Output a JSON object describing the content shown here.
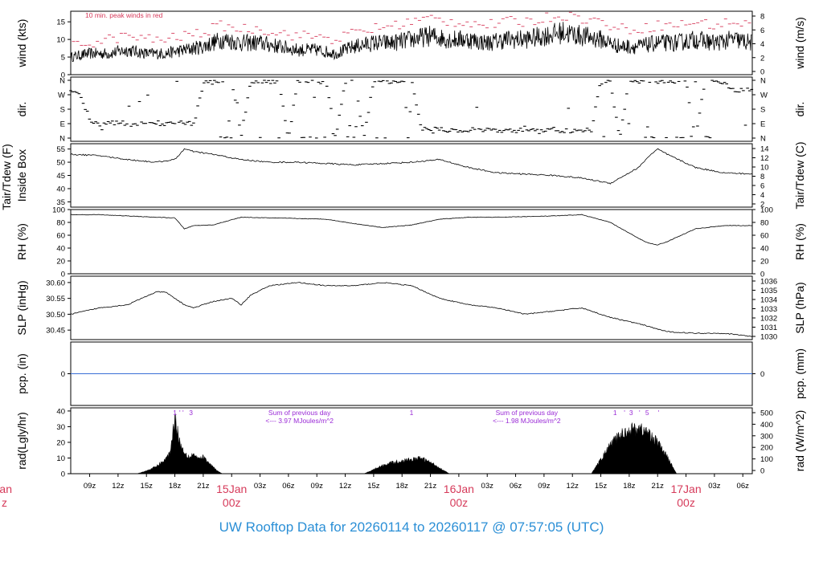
{
  "figure": {
    "footer": "UW Rooftop Data for 20260114  to  20260117 @ 07:57:05  (UTC)"
  },
  "colors": {
    "trace": "#000000",
    "peak": "#d63a5a",
    "date_label": "#d63a5a",
    "annotation": "#9a2bd6",
    "precip": "#3a6fd6",
    "footer": "#2b8fd6"
  },
  "x_axis": {
    "tick_labels": [
      "09z",
      "12z",
      "15z",
      "18z",
      "21z",
      "03z",
      "06z",
      "09z",
      "12z",
      "15z",
      "18z",
      "21z",
      "03z",
      "06z",
      "09z",
      "12z",
      "15z",
      "18z",
      "21z",
      "03z",
      "06z"
    ],
    "day_labels": [
      {
        "date": "15Jan",
        "time": "00z"
      },
      {
        "date": "16Jan",
        "time": "00z"
      },
      {
        "date": "17Jan",
        "time": "00z"
      }
    ],
    "edge_label": {
      "date": "an",
      "time": "z"
    }
  },
  "chart_data": [
    {
      "id": "wind",
      "type": "line",
      "ylabel_left": "wind (kts)",
      "ylabel_right": "wind (m/s)",
      "left_ticks": [
        "0",
        "5",
        "10",
        "15"
      ],
      "right_ticks": [
        "0",
        "2",
        "4",
        "6",
        "8"
      ],
      "ylim": [
        0,
        18
      ],
      "annotation": "10 min. peak winds in red",
      "series": [
        {
          "x": [
            0,
            2,
            4,
            6,
            8,
            10,
            12,
            14,
            16,
            18,
            20,
            22,
            24,
            26,
            28,
            30,
            32,
            34,
            36,
            38,
            40,
            42,
            44,
            46,
            48,
            50,
            52,
            54,
            56,
            58,
            60,
            62,
            64,
            66,
            68,
            70,
            72
          ],
          "values": [
            5,
            6,
            6,
            7,
            6,
            6,
            7,
            8,
            10,
            9,
            9,
            8,
            7,
            7,
            6,
            8,
            9,
            9,
            10,
            11,
            10,
            10,
            9,
            10,
            10,
            11,
            12,
            11,
            10,
            8,
            8,
            9,
            9,
            10,
            9,
            10,
            9
          ]
        },
        {
          "x": [
            0,
            2,
            4,
            6,
            8,
            10,
            12,
            14,
            16,
            18,
            20,
            22,
            24,
            26,
            28,
            30,
            32,
            34,
            36,
            38,
            40,
            42,
            44,
            46,
            48,
            50,
            52,
            54,
            56,
            58,
            60,
            62,
            64,
            66,
            68,
            70,
            72
          ],
          "values": [
            8,
            9,
            10,
            11,
            10,
            10,
            11,
            12,
            14,
            13,
            13,
            12,
            11,
            11,
            10,
            12,
            13,
            14,
            15,
            16,
            15,
            15,
            14,
            15,
            15,
            16,
            17,
            16,
            15,
            13,
            13,
            14,
            14,
            15,
            14,
            15,
            14
          ]
        }
      ]
    },
    {
      "id": "dir",
      "type": "scatter",
      "ylabel_left": "dir.",
      "ylabel_right": "dir.",
      "left_ticks": [
        "N",
        "E",
        "S",
        "W",
        "N"
      ],
      "right_ticks": [
        "N",
        "E",
        "S",
        "W",
        "N"
      ],
      "ylim": [
        0,
        360
      ],
      "series": [
        {
          "x": [
            0,
            1,
            2,
            3,
            4,
            5,
            6,
            7,
            8,
            9,
            10,
            11,
            12,
            13,
            14,
            15,
            16,
            17,
            18,
            19,
            20,
            21,
            22,
            23,
            24,
            25,
            26,
            27,
            28,
            29,
            30,
            31,
            32,
            33,
            34,
            35,
            36,
            37,
            38,
            39,
            40,
            41,
            42,
            43,
            44,
            45,
            46,
            47,
            48,
            49,
            50,
            51,
            52,
            53,
            54,
            55,
            56,
            57,
            58,
            59,
            60,
            61,
            62,
            63,
            64,
            65,
            66,
            67,
            68,
            69,
            70,
            71
          ],
          "values": [
            290,
            270,
            120,
            80,
            90,
            95,
            90,
            85,
            90,
            95,
            90,
            100,
            95,
            90,
            340,
            350,
            355,
            355,
            5,
            355,
            350,
            355,
            355,
            0,
            355,
            355,
            350,
            355,
            5,
            355,
            355,
            0,
            355,
            355,
            355,
            350,
            355,
            60,
            50,
            55,
            50,
            45,
            50,
            50,
            55,
            45,
            40,
            45,
            60,
            55,
            50,
            55,
            45,
            40,
            45,
            50,
            355,
            355,
            0,
            355,
            355,
            355,
            350,
            355,
            355,
            355,
            0,
            355,
            355,
            340,
            300,
            300
          ]
        }
      ]
    },
    {
      "id": "temp",
      "type": "line",
      "ylabel_left": [
        "Tair/Tdew (F)",
        "Inside Box"
      ],
      "ylabel_right": "Tair/Tdew (C)",
      "left_ticks": [
        "35",
        "40",
        "45",
        "50",
        "55"
      ],
      "right_ticks": [
        "2",
        "4",
        "6",
        "8",
        "10",
        "12",
        "14"
      ],
      "ylim": [
        33,
        57
      ],
      "series": [
        {
          "x": [
            0,
            3,
            6,
            9,
            11,
            12,
            13,
            15,
            18,
            21,
            24,
            27,
            30,
            33,
            36,
            39,
            42,
            45,
            48,
            51,
            54,
            57,
            60,
            61,
            62,
            63,
            66,
            69,
            72
          ],
          "values": [
            53,
            52.5,
            51,
            50,
            51,
            55,
            54,
            53,
            51,
            50,
            50,
            49.5,
            49,
            49.5,
            50,
            51,
            48,
            46,
            45.5,
            45,
            44,
            42,
            48,
            52,
            55,
            53,
            48,
            46,
            45.5
          ]
        }
      ]
    },
    {
      "id": "rh",
      "type": "line",
      "ylabel_left": "RH (%)",
      "ylabel_right": "RH (%)",
      "left_ticks": [
        "0",
        "20",
        "40",
        "60",
        "80",
        "100"
      ],
      "right_ticks": [
        "0",
        "20",
        "40",
        "60",
        "80",
        "100"
      ],
      "ylim": [
        0,
        100
      ],
      "series": [
        {
          "x": [
            0,
            3,
            6,
            9,
            11,
            12,
            13,
            15,
            18,
            21,
            24,
            27,
            30,
            33,
            36,
            39,
            42,
            45,
            48,
            51,
            54,
            57,
            60,
            61,
            62,
            63,
            66,
            69,
            72
          ],
          "values": [
            92,
            92,
            90,
            88,
            87,
            70,
            75,
            76,
            88,
            87,
            86,
            85,
            78,
            72,
            76,
            85,
            88,
            88,
            89,
            90,
            92,
            80,
            55,
            48,
            45,
            50,
            70,
            75,
            75
          ]
        }
      ]
    },
    {
      "id": "slp",
      "type": "line",
      "ylabel_left": "SLP (inHg)",
      "ylabel_right": "SLP (hPa)",
      "left_ticks": [
        "30.45",
        "30.50",
        "30.55",
        "30.60"
      ],
      "right_ticks": [
        "1030",
        "1031",
        "1032",
        "1033",
        "1034",
        "1035",
        "1036"
      ],
      "ylim": [
        30.42,
        30.62
      ],
      "series": [
        {
          "x": [
            0,
            3,
            6,
            9,
            10,
            12,
            13,
            15,
            17,
            18,
            19,
            21,
            24,
            27,
            30,
            33,
            36,
            39,
            42,
            45,
            48,
            51,
            54,
            57,
            60,
            63,
            66,
            69,
            72
          ],
          "values": [
            30.5,
            30.52,
            30.53,
            30.57,
            30.57,
            30.53,
            30.52,
            30.54,
            30.55,
            30.53,
            30.56,
            30.59,
            30.6,
            30.59,
            30.59,
            30.6,
            30.59,
            30.55,
            30.53,
            30.52,
            30.5,
            30.51,
            30.52,
            30.49,
            30.47,
            30.445,
            30.44,
            30.44,
            30.43
          ]
        }
      ]
    },
    {
      "id": "pcp",
      "type": "line",
      "ylabel_left": "pcp. (in)",
      "ylabel_right": "pcp. (mm)",
      "left_ticks": [
        "0"
      ],
      "right_ticks": [
        "0"
      ],
      "ylim": [
        -1,
        1
      ],
      "series": [
        {
          "x": [
            0,
            72
          ],
          "values": [
            0,
            0
          ]
        }
      ]
    },
    {
      "id": "rad",
      "type": "area",
      "ylabel_left": "rad(Lgly/hr)",
      "ylabel_right": "rad (W/m^2)",
      "left_ticks": [
        "0",
        "10",
        "20",
        "30",
        "40"
      ],
      "right_ticks": [
        "0",
        "100",
        "200",
        "300",
        "400",
        "500"
      ],
      "ylim": [
        0,
        42
      ],
      "annotations": [
        {
          "text": "Sum of previous day",
          "x": 24.0,
          "row": 0
        },
        {
          "text": "<--- 3.97 MJoules/m^2",
          "x": 24.0,
          "row": 1
        },
        {
          "text": "Sum of previous day",
          "x": 48.0,
          "row": 0
        },
        {
          "text": "<--- 1.98 MJoules/m^2",
          "x": 48.0,
          "row": 1
        }
      ],
      "uv_marks": [
        {
          "text": "1",
          "x": 11.0
        },
        {
          "text": "' '",
          "x": 11.7
        },
        {
          "text": "3",
          "x": 12.7
        },
        {
          "text": "1",
          "x": 36.0
        },
        {
          "text": "1",
          "x": 57.5
        },
        {
          "text": "'",
          "x": 58.5
        },
        {
          "text": "3",
          "x": 59.2
        },
        {
          "text": "'",
          "x": 60.1
        },
        {
          "text": "5",
          "x": 60.9
        },
        {
          "text": "'",
          "x": 62.1
        }
      ],
      "series": [
        {
          "x": [
            7.0,
            8.0,
            9.0,
            10.0,
            10.5,
            11.0,
            11.3,
            11.6,
            12.0,
            12.5,
            13.0,
            13.5,
            14.0,
            14.5,
            15.0,
            15.5,
            16.0
          ],
          "values": [
            0,
            2,
            5,
            10,
            15,
            40,
            30,
            20,
            15,
            12,
            14,
            10,
            12,
            8,
            5,
            2,
            0
          ]
        },
        {
          "x": [
            31.0,
            32.0,
            33.0,
            34.0,
            35.0,
            36.0,
            37.0,
            38.0,
            39.0,
            40.0
          ],
          "values": [
            0,
            3,
            6,
            8,
            9,
            10,
            11,
            8,
            4,
            0
          ]
        },
        {
          "x": [
            55.0,
            56.0,
            57.0,
            58.0,
            59.0,
            60.0,
            61.0,
            62.0,
            63.0,
            64.0
          ],
          "values": [
            0,
            10,
            20,
            27,
            31,
            32,
            29,
            22,
            12,
            0
          ]
        }
      ]
    }
  ]
}
